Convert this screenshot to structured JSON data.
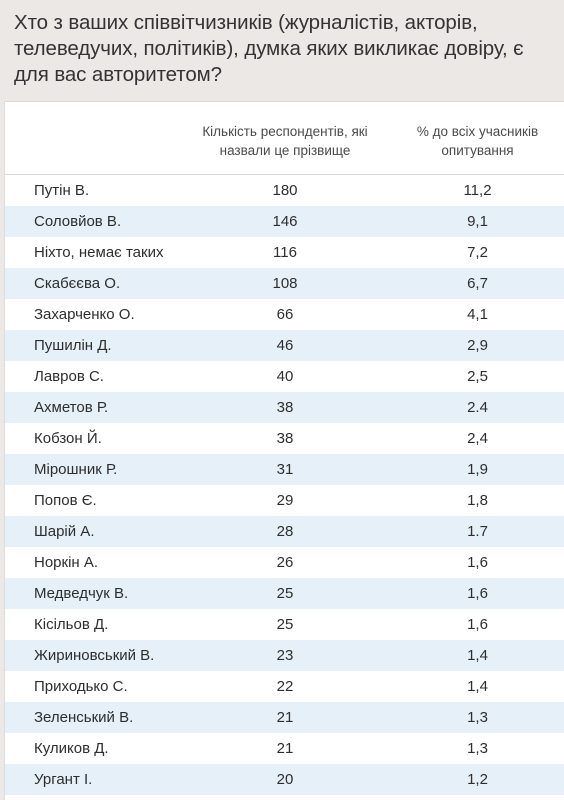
{
  "title": "Хто з ваших співвітчизників (журналістів, акторів, телеведучих, політиків), думка яких викликає довіру, є для вас авторитетом?",
  "columns": {
    "count": "Кількість респондентів, які назвали це прізвище",
    "percent": "% до всіх учасників опитування"
  },
  "rows": [
    {
      "name": "Путін В.",
      "count": "180",
      "percent": "11,2"
    },
    {
      "name": "Соловйов В.",
      "count": "146",
      "percent": "9,1"
    },
    {
      "name": "Ніхто, немає таких",
      "count": "116",
      "percent": "7,2"
    },
    {
      "name": "Скабєєва О.",
      "count": "108",
      "percent": "6,7"
    },
    {
      "name": "Захарченко О.",
      "count": "66",
      "percent": "4,1"
    },
    {
      "name": "Пушилін Д.",
      "count": "46",
      "percent": "2,9"
    },
    {
      "name": "Лавров С.",
      "count": "40",
      "percent": "2,5"
    },
    {
      "name": "Ахметов Р.",
      "count": "38",
      "percent": "2.4"
    },
    {
      "name": "Кобзон Й.",
      "count": "38",
      "percent": "2,4"
    },
    {
      "name": "Мірошник Р.",
      "count": "31",
      "percent": "1,9"
    },
    {
      "name": "Попов Є.",
      "count": "29",
      "percent": "1,8"
    },
    {
      "name": "Шарій А.",
      "count": "28",
      "percent": "1.7"
    },
    {
      "name": "Норкін А.",
      "count": "26",
      "percent": "1,6"
    },
    {
      "name": "Медведчук В.",
      "count": "25",
      "percent": "1,6"
    },
    {
      "name": "Кісільов Д.",
      "count": "25",
      "percent": "1,6"
    },
    {
      "name": "Жириновський В.",
      "count": "23",
      "percent": "1,4"
    },
    {
      "name": "Приходько С.",
      "count": "22",
      "percent": "1,4"
    },
    {
      "name": "Зеленський В.",
      "count": "21",
      "percent": "1,3"
    },
    {
      "name": "Куликов Д.",
      "count": "21",
      "percent": "1,3"
    },
    {
      "name": "Ургант І.",
      "count": "20",
      "percent": "1,2"
    }
  ]
}
